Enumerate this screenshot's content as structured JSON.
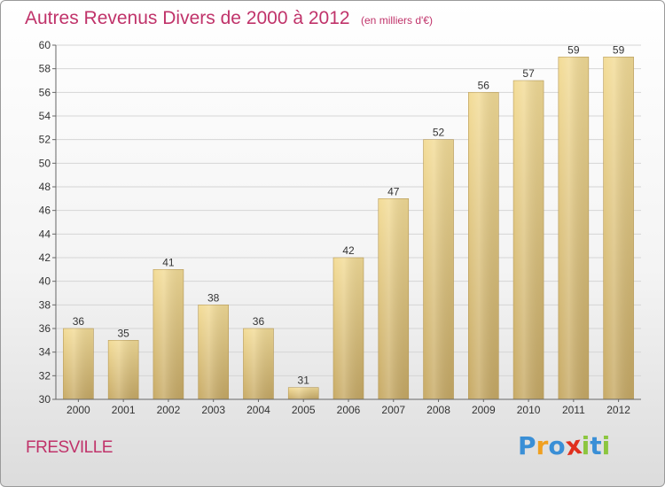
{
  "title": "Autres Revenus Divers de 2000 à 2012",
  "unit": "(en milliers d'€)",
  "city": "FRESVILLE",
  "logo": {
    "text": "Proxiti",
    "letters": [
      {
        "ch": "P",
        "color": "#3a8fd6"
      },
      {
        "ch": "r",
        "color": "#f0a020"
      },
      {
        "ch": "o",
        "color": "#3a8fd6"
      },
      {
        "ch": "x",
        "color": "#e0301e"
      },
      {
        "ch": "i",
        "color": "#8cc63f"
      },
      {
        "ch": "t",
        "color": "#3a8fd6"
      },
      {
        "ch": "i",
        "color": "#8cc63f"
      }
    ]
  },
  "colors": {
    "bar_light": "#f3dc97",
    "bar_dark": "#c7aa66",
    "bar_edge": "#b89b58",
    "grid": "#d5d5d5",
    "title": "#c0336a"
  },
  "chart_data": {
    "type": "bar",
    "categories": [
      "2000",
      "2001",
      "2002",
      "2003",
      "2004",
      "2005",
      "2006",
      "2007",
      "2008",
      "2009",
      "2010",
      "2011",
      "2012"
    ],
    "values": [
      36,
      35,
      41,
      38,
      36,
      31,
      42,
      47,
      52,
      56,
      57,
      59,
      59
    ],
    "ylim": [
      30,
      60
    ],
    "yticks": [
      30,
      32,
      34,
      36,
      38,
      40,
      42,
      44,
      46,
      48,
      50,
      52,
      54,
      56,
      58,
      60
    ],
    "grid": true,
    "xlabel": "",
    "ylabel": ""
  }
}
